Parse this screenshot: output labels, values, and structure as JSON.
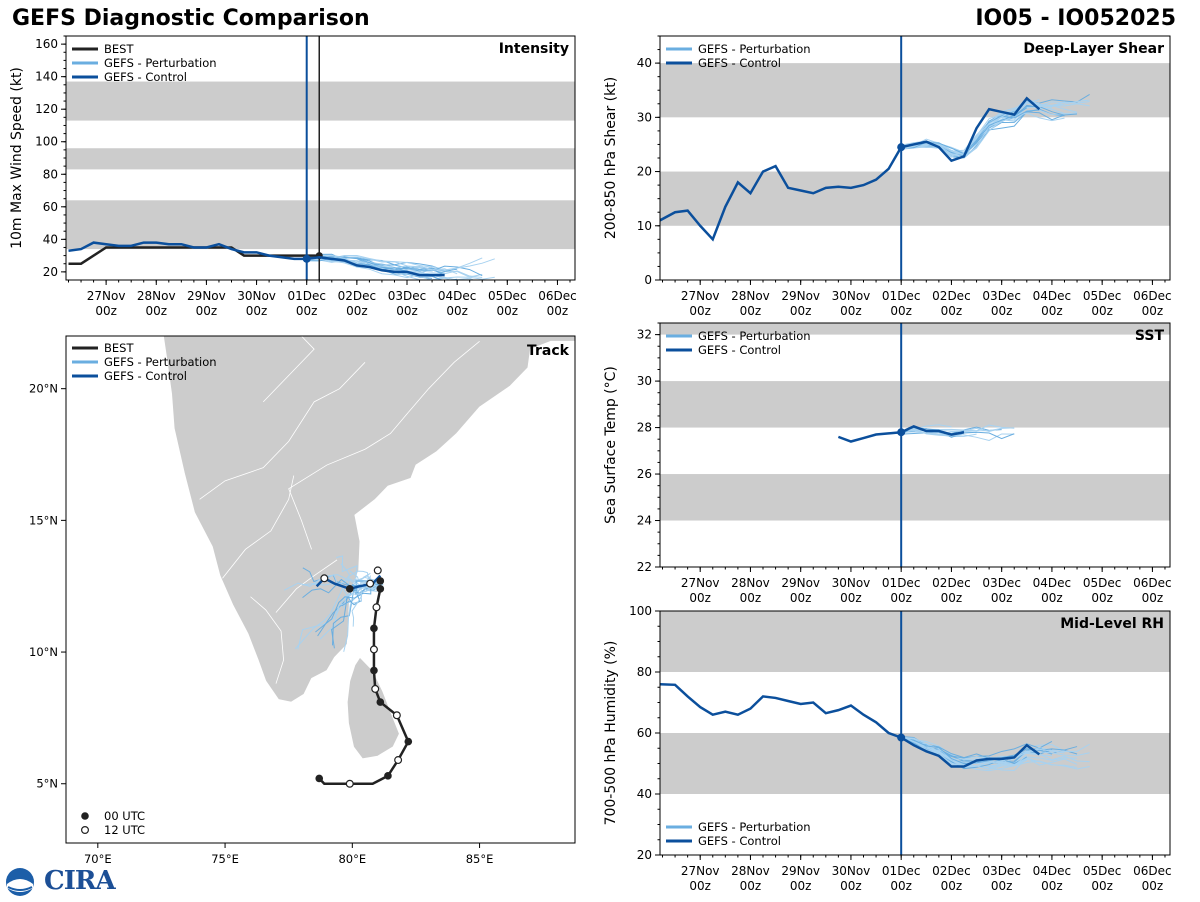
{
  "header": {
    "title_left": "GEFS Diagnostic Comparison",
    "title_right": "IO05 - IO052025"
  },
  "colors": {
    "best": "#222222",
    "control": "#0b4f9c",
    "perturbation": "#6aaee0",
    "perturbation_thin": "#a8d2f0",
    "band": "#cccccc",
    "land": "#cccccc"
  },
  "time_axis": {
    "labels": [
      [
        "27Nov",
        "00z"
      ],
      [
        "28Nov",
        "00z"
      ],
      [
        "29Nov",
        "00z"
      ],
      [
        "30Nov",
        "00z"
      ],
      [
        "01Dec",
        "00z"
      ],
      [
        "02Dec",
        "00z"
      ],
      [
        "03Dec",
        "00z"
      ],
      [
        "04Dec",
        "00z"
      ],
      [
        "05Dec",
        "00z"
      ],
      [
        "06Dec",
        "00z"
      ]
    ],
    "tick_days": [
      1,
      2,
      3,
      4,
      5,
      6,
      7,
      8,
      9,
      10
    ],
    "xlim_days": [
      0.2,
      10.35
    ],
    "init_day": 5
  },
  "chart_data": [
    {
      "id": "intensity",
      "type": "line",
      "title": "Intensity",
      "ylabel": "10m Max Wind Speed (kt)",
      "ylim": [
        15,
        165
      ],
      "yticks": [
        20,
        40,
        60,
        80,
        100,
        120,
        140,
        160
      ],
      "bands": [
        [
          34,
          64
        ],
        [
          83,
          96
        ],
        [
          113,
          137
        ]
      ],
      "legend": [
        "BEST",
        "GEFS - Perturbation",
        "GEFS - Control"
      ],
      "best_vline_day": 5.25,
      "series": [
        {
          "name": "BEST",
          "x": [
            0.25,
            0.5,
            1,
            1.5,
            2,
            2.5,
            3,
            3.5,
            3.75,
            4,
            4.5,
            5,
            5.25
          ],
          "y": [
            25,
            25,
            35,
            35,
            35,
            35,
            35,
            35,
            30,
            30,
            30,
            30,
            30
          ]
        },
        {
          "name": "GEFS - Control",
          "x": [
            0.25,
            0.5,
            0.75,
            1,
            1.25,
            1.5,
            1.75,
            2,
            2.25,
            2.5,
            2.75,
            3,
            3.25,
            3.5,
            3.75,
            4,
            4.25,
            4.5,
            4.75,
            5,
            5.25,
            5.5,
            5.75,
            6,
            6.25,
            6.5,
            6.75,
            7,
            7.25,
            7.5,
            7.75
          ],
          "y": [
            33,
            34,
            38,
            37,
            36,
            36,
            38,
            38,
            37,
            37,
            35,
            35,
            37,
            34,
            32,
            32,
            30,
            29,
            28,
            28,
            29,
            28,
            27,
            24,
            23,
            21,
            20,
            20,
            18,
            18,
            18
          ]
        }
      ],
      "perturbation_count": 20
    },
    {
      "id": "shear",
      "type": "line",
      "title": "Deep-Layer Shear",
      "ylabel": "200-850 hPa Shear (kt)",
      "ylim": [
        0,
        45
      ],
      "yticks": [
        0,
        10,
        20,
        30,
        40
      ],
      "bands": [
        [
          10,
          20
        ],
        [
          30,
          40
        ]
      ],
      "legend": [
        "GEFS - Perturbation",
        "GEFS - Control"
      ],
      "series": [
        {
          "name": "GEFS - Control",
          "x": [
            0.2,
            0.5,
            0.75,
            1,
            1.25,
            1.5,
            1.75,
            2,
            2.25,
            2.5,
            2.75,
            3,
            3.25,
            3.5,
            3.75,
            4,
            4.25,
            4.5,
            4.75,
            5,
            5.25,
            5.5,
            5.75,
            6,
            6.25,
            6.5,
            6.75,
            7,
            7.25,
            7.5,
            7.75
          ],
          "y": [
            11,
            12.5,
            12.8,
            10,
            7.5,
            13.5,
            18,
            16,
            20,
            21,
            17,
            16.5,
            16,
            17,
            17.2,
            17,
            17.5,
            18.5,
            20.5,
            24.5,
            25,
            25.5,
            24.5,
            22,
            22.8,
            28,
            31.5,
            31,
            30.5,
            33.5,
            31.5
          ]
        }
      ],
      "perturbation_count": 20
    },
    {
      "id": "sst",
      "type": "line",
      "title": "SST",
      "ylabel": "Sea Surface Temp (°C)",
      "ylim": [
        22,
        32.5
      ],
      "yticks": [
        22,
        24,
        26,
        28,
        30,
        32
      ],
      "bands": [
        [
          24,
          26
        ],
        [
          28,
          30
        ],
        [
          32,
          32.5
        ]
      ],
      "legend": [
        "GEFS - Perturbation",
        "GEFS - Control"
      ],
      "series": [
        {
          "name": "GEFS - Control",
          "x": [
            3.75,
            4,
            4.25,
            4.5,
            4.75,
            5,
            5.25,
            5.5,
            5.75,
            6,
            6.25
          ],
          "y": [
            27.6,
            27.4,
            27.55,
            27.7,
            27.75,
            27.8,
            28.05,
            27.85,
            27.85,
            27.7,
            27.8
          ]
        }
      ],
      "perturbation_count": 12
    },
    {
      "id": "rh",
      "type": "line",
      "title": "Mid-Level RH",
      "ylabel": "700-500 hPa Humidity (%)",
      "ylim": [
        20,
        100
      ],
      "yticks": [
        20,
        40,
        60,
        80,
        100
      ],
      "bands": [
        [
          40,
          60
        ],
        [
          80,
          100
        ]
      ],
      "legend": [
        "GEFS - Perturbation",
        "GEFS - Control"
      ],
      "series": [
        {
          "name": "GEFS - Control",
          "x": [
            0.2,
            0.5,
            0.75,
            1,
            1.25,
            1.5,
            1.75,
            2,
            2.25,
            2.5,
            2.75,
            3,
            3.25,
            3.5,
            3.75,
            4,
            4.25,
            4.5,
            4.75,
            5,
            5.25,
            5.5,
            5.75,
            6,
            6.25,
            6.5,
            6.75,
            7,
            7.25,
            7.5,
            7.75
          ],
          "y": [
            76,
            75.8,
            72,
            68.5,
            66,
            67,
            66,
            68,
            72,
            71.5,
            70.5,
            69.5,
            70,
            66.5,
            67.5,
            69,
            66,
            63.5,
            60,
            58.5,
            56,
            54,
            52.5,
            49,
            49,
            51,
            51.5,
            51.5,
            52,
            56,
            53
          ]
        }
      ],
      "perturbation_count": 20
    }
  ],
  "track": {
    "title": "Track",
    "legend": [
      "BEST",
      "GEFS - Perturbation",
      "GEFS - Control"
    ],
    "marker_legend": [
      "00 UTC",
      "12 UTC"
    ],
    "lon_range": [
      68.75,
      88.75
    ],
    "lat_range": [
      2.75,
      22
    ],
    "lon_ticks": [
      70,
      75,
      80,
      85
    ],
    "lon_labels": [
      "70°E",
      "75°E",
      "80°E",
      "85°E"
    ],
    "lat_ticks": [
      5,
      10,
      15,
      20
    ],
    "lat_labels": [
      "5°N",
      "10°N",
      "15°N",
      "20°N"
    ],
    "best_track": [
      [
        78.7,
        5.2
      ],
      [
        78.9,
        5.0
      ],
      [
        79.9,
        5.0
      ],
      [
        80.8,
        5.0
      ],
      [
        81.4,
        5.3
      ],
      [
        81.8,
        5.9
      ],
      [
        82.2,
        6.6
      ],
      [
        81.75,
        7.6
      ],
      [
        81.1,
        8.1
      ],
      [
        80.9,
        8.6
      ],
      [
        80.85,
        9.3
      ],
      [
        80.85,
        10.1
      ],
      [
        80.85,
        10.9
      ],
      [
        80.95,
        11.7
      ],
      [
        81.1,
        12.4
      ]
    ],
    "best_markers_00": [
      [
        78.7,
        5.2
      ],
      [
        81.4,
        5.3
      ],
      [
        82.2,
        6.6
      ],
      [
        81.1,
        8.1
      ],
      [
        80.85,
        9.3
      ],
      [
        80.85,
        10.9
      ],
      [
        81.1,
        12.4
      ]
    ],
    "best_markers_12": [
      [
        79.9,
        5.0
      ],
      [
        81.8,
        5.9
      ],
      [
        81.75,
        7.6
      ],
      [
        80.9,
        8.6
      ],
      [
        80.85,
        10.1
      ],
      [
        80.95,
        11.7
      ],
      [
        81.0,
        13.1
      ]
    ],
    "control_track": [
      [
        81.1,
        12.9
      ],
      [
        80.8,
        12.6
      ],
      [
        80.3,
        12.5
      ],
      [
        79.9,
        12.4
      ],
      [
        79.3,
        12.6
      ],
      [
        78.9,
        12.8
      ],
      [
        78.6,
        12.5
      ]
    ],
    "control_markers_00": [
      [
        79.9,
        12.4
      ],
      [
        81.1,
        12.7
      ]
    ],
    "control_markers_12": [
      [
        80.7,
        12.6
      ],
      [
        78.9,
        12.8
      ]
    ],
    "perturbation_tracks": 20
  }
}
